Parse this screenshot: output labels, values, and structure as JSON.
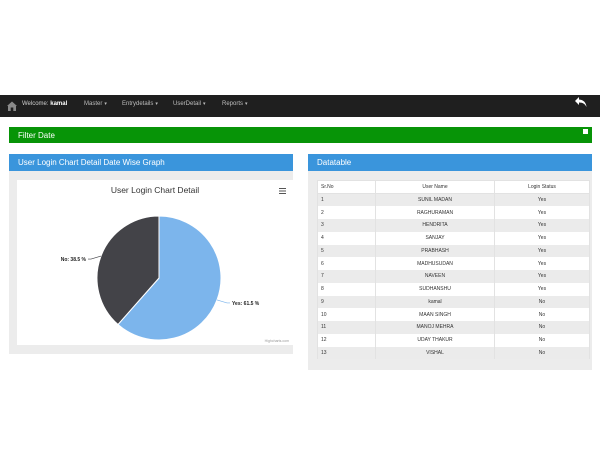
{
  "navbar": {
    "welcome_prefix": "Welcome",
    "user": "kamal",
    "menus": [
      {
        "label": "Master"
      },
      {
        "label": "Entrydetails"
      },
      {
        "label": "UserDetail"
      },
      {
        "label": "Reports"
      }
    ]
  },
  "filter": {
    "title": "Filter Date"
  },
  "chart_panel": {
    "title": "User Login Chart Detail Date Wise Graph"
  },
  "chart_data": {
    "type": "pie",
    "title": "User Login Chart Detail",
    "slices": [
      {
        "name": "Yes",
        "value": 61.5,
        "label": "Yes: 61.5 %",
        "color": "#7cb5ec"
      },
      {
        "name": "No",
        "value": 38.5,
        "label": "No: 38.5 %",
        "color": "#434348"
      }
    ],
    "credits": "Highcharts.com"
  },
  "datatable": {
    "title": "Datatable",
    "columns": [
      "Sr.No",
      "User Name",
      "Login Status"
    ],
    "rows": [
      [
        "1",
        "SUNIL MADAN",
        "Yes"
      ],
      [
        "2",
        "RAGHURAMAN",
        "Yes"
      ],
      [
        "3",
        "HENDRITA",
        "Yes"
      ],
      [
        "4",
        "SANJAY",
        "Yes"
      ],
      [
        "5",
        "PRABHASH",
        "Yes"
      ],
      [
        "6",
        "MADHUSUDAN",
        "Yes"
      ],
      [
        "7",
        "NAVEEN",
        "Yes"
      ],
      [
        "8",
        "SUDHANSHU",
        "Yes"
      ],
      [
        "9",
        "kamal",
        "No"
      ],
      [
        "10",
        "MAAN SINGH",
        "No"
      ],
      [
        "11",
        "MANOJ MEHRA",
        "No"
      ],
      [
        "12",
        "UDAY THAKUR",
        "No"
      ],
      [
        "13",
        "VISHAL",
        "No"
      ]
    ]
  }
}
